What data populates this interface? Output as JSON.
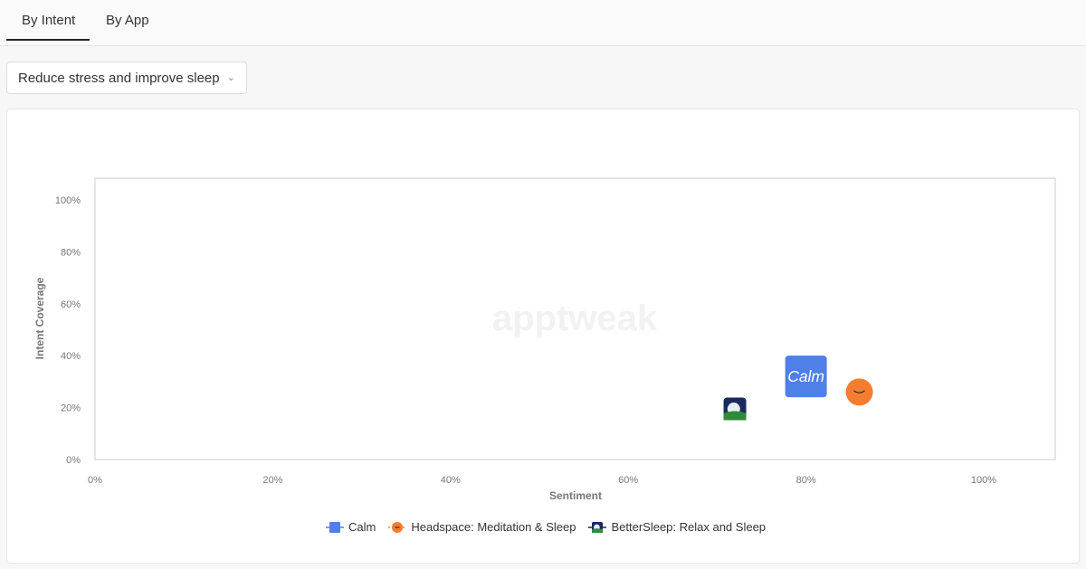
{
  "tabs": [
    {
      "label": "By Intent",
      "active": true
    },
    {
      "label": "By App",
      "active": false
    }
  ],
  "intent_select": {
    "value": "Reduce stress and improve sleep"
  },
  "watermark": "apptweak",
  "chart_data": {
    "type": "scatter",
    "title": "",
    "xlabel": "Sentiment",
    "ylabel": "Intent Coverage",
    "xlim": [
      0,
      108
    ],
    "ylim": [
      0,
      108
    ],
    "xticks": [
      "0%",
      "20%",
      "40%",
      "60%",
      "80%",
      "100%"
    ],
    "yticks": [
      "0%",
      "20%",
      "40%",
      "60%",
      "80%",
      "100%"
    ],
    "grid": false,
    "legend": "bottom",
    "series": [
      {
        "name": "Calm",
        "x": 80,
        "y": 32,
        "color": "#4f7fe8",
        "icon": "calm-app-icon"
      },
      {
        "name": "Headspace: Meditation & Sleep",
        "x": 86,
        "y": 26,
        "color": "#f47d31",
        "icon": "headspace-app-icon"
      },
      {
        "name": "BetterSleep: Relax and Sleep",
        "x": 72,
        "y": 19.5,
        "color": "#1a2a5c",
        "icon": "bettersleep-app-icon"
      }
    ]
  }
}
